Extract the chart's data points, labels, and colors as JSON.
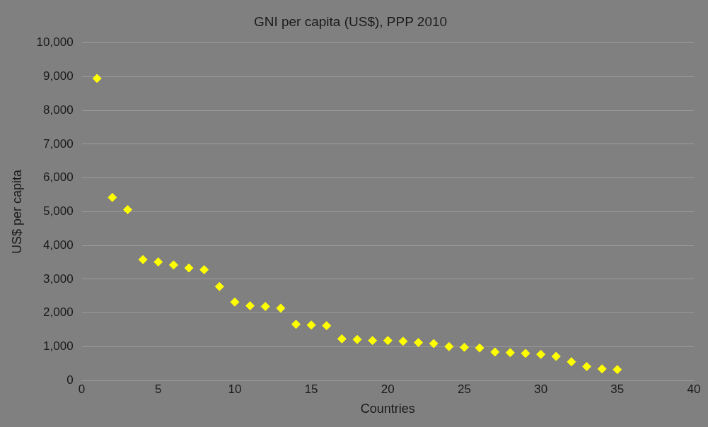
{
  "chart_data": {
    "type": "scatter",
    "title": "GNI per capita (US$), PPP 2010",
    "xlabel": "Countries",
    "ylabel": "US$ per capita",
    "x": [
      1,
      2,
      3,
      4,
      5,
      6,
      7,
      8,
      9,
      10,
      11,
      12,
      13,
      14,
      15,
      16,
      17,
      18,
      19,
      20,
      21,
      22,
      23,
      24,
      25,
      26,
      27,
      28,
      29,
      30,
      31,
      32,
      33,
      34,
      35
    ],
    "series": [
      {
        "color": "#ffff00",
        "values": [
          8950,
          5420,
          5060,
          3580,
          3510,
          3420,
          3330,
          3280,
          2780,
          2320,
          2210,
          2190,
          2140,
          1660,
          1640,
          1620,
          1230,
          1210,
          1180,
          1180,
          1160,
          1120,
          1090,
          1000,
          980,
          960,
          840,
          820,
          800,
          770,
          710,
          550,
          410,
          340,
          320
        ]
      }
    ],
    "xlim": [
      0,
      40
    ],
    "xticks": [
      0,
      5,
      10,
      15,
      20,
      25,
      30,
      35,
      40
    ],
    "ylim": [
      0,
      10000
    ],
    "yticks": [
      {
        "value": 0,
        "label": "0"
      },
      {
        "value": 1000,
        "label": "1,000"
      },
      {
        "value": 2000,
        "label": "2,000"
      },
      {
        "value": 3000,
        "label": "3,000"
      },
      {
        "value": 4000,
        "label": "4,000"
      },
      {
        "value": 5000,
        "label": "5,000"
      },
      {
        "value": 6000,
        "label": "6,000"
      },
      {
        "value": 7000,
        "label": "7,000"
      },
      {
        "value": 8000,
        "label": "8,000"
      },
      {
        "value": 9000,
        "label": "9,000"
      },
      {
        "value": 10000,
        "label": "10,000"
      }
    ],
    "grid": "y",
    "legend": false,
    "marker": "diamond"
  }
}
